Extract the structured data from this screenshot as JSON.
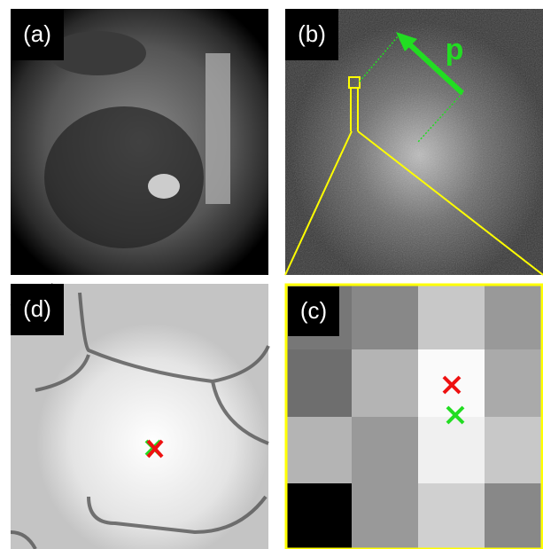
{
  "panels": [
    {
      "label": "(a)"
    },
    {
      "label": "(b)"
    },
    {
      "label": "(c)"
    },
    {
      "label": "(d)"
    }
  ],
  "vector_label": "p"
}
